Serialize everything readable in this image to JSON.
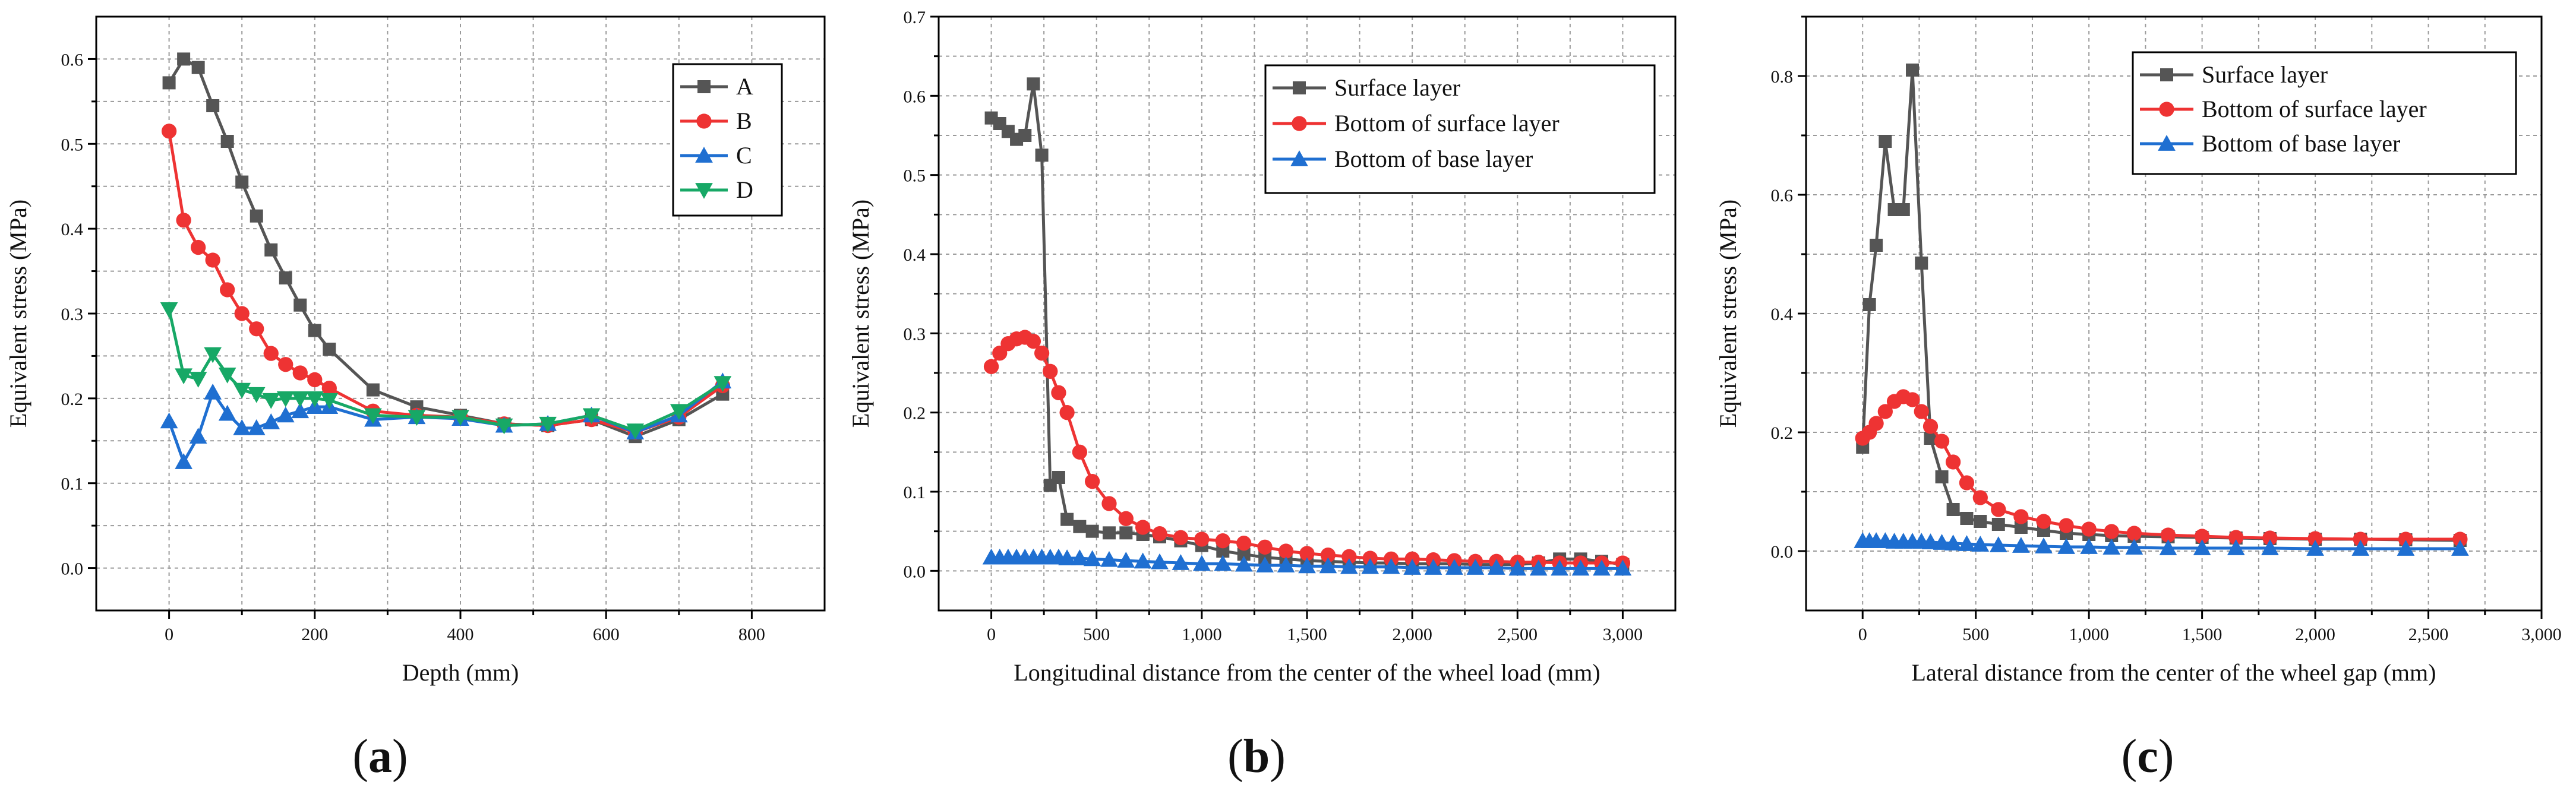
{
  "figure_labels": [
    {
      "open": "(",
      "letter": "a",
      "close": ")"
    },
    {
      "open": "(",
      "letter": "b",
      "close": ")"
    },
    {
      "open": "(",
      "letter": "c",
      "close": ")"
    }
  ],
  "colors": {
    "gray": "#555555",
    "red": "#ee3333",
    "blue": "#1f6fd1",
    "green": "#17a866"
  },
  "chart_data": [
    {
      "type": "line",
      "title": "",
      "xlabel": "Depth (mm)",
      "ylabel": "Equivalent stress (MPa)",
      "xlim": [
        -100,
        900
      ],
      "ylim": [
        -0.05,
        0.65
      ],
      "xticks": [
        0,
        200,
        400,
        600,
        800
      ],
      "xtick_labels": [
        "0",
        "200",
        "400",
        "600",
        "800"
      ],
      "yticks": [
        0.0,
        0.1,
        0.2,
        0.3,
        0.4,
        0.5,
        0.6
      ],
      "ytick_labels": [
        "0.0",
        "0.1",
        "0.2",
        "0.3",
        "0.4",
        "0.5",
        "0.6"
      ],
      "xgrid_step": 100,
      "ygrid_step": 0.05,
      "legend_position": "top-right",
      "series": [
        {
          "name": "A",
          "color": "#555555",
          "marker": "square",
          "x": [
            0,
            20,
            40,
            60,
            80,
            100,
            120,
            140,
            160,
            180,
            200,
            220,
            280,
            340,
            400,
            460,
            520,
            580,
            640,
            700,
            760
          ],
          "y": [
            0.572,
            0.6,
            0.59,
            0.545,
            0.503,
            0.455,
            0.415,
            0.375,
            0.342,
            0.31,
            0.28,
            0.258,
            0.21,
            0.19,
            0.18,
            0.17,
            0.168,
            0.175,
            0.155,
            0.175,
            0.205
          ]
        },
        {
          "name": "B",
          "color": "#ee3333",
          "marker": "circle",
          "x": [
            0,
            20,
            40,
            60,
            80,
            100,
            120,
            140,
            160,
            180,
            200,
            220,
            280,
            340,
            400,
            460,
            520,
            580,
            640,
            700,
            760
          ],
          "y": [
            0.515,
            0.41,
            0.378,
            0.363,
            0.328,
            0.3,
            0.282,
            0.253,
            0.24,
            0.23,
            0.222,
            0.212,
            0.185,
            0.18,
            0.178,
            0.17,
            0.168,
            0.175,
            0.16,
            0.178,
            0.215
          ]
        },
        {
          "name": "C",
          "color": "#1f6fd1",
          "marker": "triangle-up",
          "x": [
            0,
            20,
            40,
            60,
            80,
            100,
            120,
            140,
            160,
            180,
            200,
            220,
            280,
            340,
            400,
            460,
            520,
            580,
            640,
            700,
            760
          ],
          "y": [
            0.173,
            0.125,
            0.155,
            0.207,
            0.182,
            0.165,
            0.165,
            0.172,
            0.18,
            0.185,
            0.19,
            0.19,
            0.175,
            0.178,
            0.176,
            0.168,
            0.17,
            0.18,
            0.16,
            0.18,
            0.22
          ]
        },
        {
          "name": "D",
          "color": "#17a866",
          "marker": "triangle-down",
          "x": [
            0,
            20,
            40,
            60,
            80,
            100,
            120,
            140,
            160,
            180,
            200,
            220,
            280,
            340,
            400,
            460,
            520,
            580,
            640,
            700,
            760
          ],
          "y": [
            0.305,
            0.227,
            0.223,
            0.252,
            0.228,
            0.21,
            0.205,
            0.198,
            0.2,
            0.2,
            0.2,
            0.198,
            0.18,
            0.178,
            0.178,
            0.168,
            0.17,
            0.18,
            0.162,
            0.185,
            0.218
          ]
        }
      ]
    },
    {
      "type": "line",
      "title": "",
      "xlabel": "Longitudinal distance from the center of the wheel load (mm)",
      "ylabel": "Equivalent stress (MPa)",
      "xlim": [
        -250,
        3250
      ],
      "ylim": [
        -0.05,
        0.7
      ],
      "xticks": [
        0,
        500,
        1000,
        1500,
        2000,
        2500,
        3000
      ],
      "xtick_labels": [
        "0",
        "500",
        "1,000",
        "1,500",
        "2,000",
        "2,500",
        "3,000"
      ],
      "yticks": [
        0.0,
        0.1,
        0.2,
        0.3,
        0.4,
        0.5,
        0.6,
        0.7
      ],
      "ytick_labels": [
        "0.0",
        "0.1",
        "0.2",
        "0.3",
        "0.4",
        "0.5",
        "0.6",
        "0.7"
      ],
      "xgrid_step": 250,
      "ygrid_step": 0.05,
      "legend_position": "top-right",
      "series": [
        {
          "name": "Surface layer",
          "color": "#555555",
          "marker": "square",
          "x": [
            0,
            40,
            80,
            120,
            160,
            200,
            240,
            280,
            320,
            360,
            420,
            480,
            560,
            640,
            720,
            800,
            900,
            1000,
            1100,
            1200,
            1300,
            1400,
            1500,
            1600,
            1700,
            1800,
            1900,
            2000,
            2100,
            2200,
            2300,
            2400,
            2500,
            2600,
            2700,
            2800,
            2900,
            3000
          ],
          "y": [
            0.572,
            0.565,
            0.555,
            0.545,
            0.55,
            0.615,
            0.525,
            0.108,
            0.118,
            0.065,
            0.056,
            0.05,
            0.048,
            0.048,
            0.046,
            0.043,
            0.038,
            0.032,
            0.025,
            0.021,
            0.017,
            0.015,
            0.013,
            0.012,
            0.011,
            0.01,
            0.01,
            0.009,
            0.009,
            0.009,
            0.008,
            0.008,
            0.008,
            0.01,
            0.015,
            0.015,
            0.012,
            0.008
          ]
        },
        {
          "name": "Bottom of surface layer",
          "color": "#ee3333",
          "marker": "circle",
          "x": [
            0,
            40,
            80,
            120,
            160,
            200,
            240,
            280,
            320,
            360,
            420,
            480,
            560,
            640,
            720,
            800,
            900,
            1000,
            1100,
            1200,
            1300,
            1400,
            1500,
            1600,
            1700,
            1800,
            1900,
            2000,
            2100,
            2200,
            2300,
            2400,
            2500,
            2600,
            2700,
            2800,
            2900,
            3000
          ],
          "y": [
            0.258,
            0.275,
            0.287,
            0.293,
            0.295,
            0.29,
            0.275,
            0.252,
            0.225,
            0.2,
            0.15,
            0.113,
            0.085,
            0.066,
            0.055,
            0.047,
            0.042,
            0.04,
            0.038,
            0.035,
            0.03,
            0.025,
            0.022,
            0.02,
            0.018,
            0.016,
            0.015,
            0.015,
            0.014,
            0.013,
            0.012,
            0.012,
            0.011,
            0.011,
            0.01,
            0.01,
            0.01,
            0.01
          ]
        },
        {
          "name": "Bottom of base layer",
          "color": "#1f6fd1",
          "marker": "triangle-up",
          "x": [
            0,
            40,
            80,
            120,
            160,
            200,
            240,
            280,
            320,
            360,
            420,
            480,
            560,
            640,
            720,
            800,
            900,
            1000,
            1100,
            1200,
            1300,
            1400,
            1500,
            1600,
            1700,
            1800,
            1900,
            2000,
            2100,
            2200,
            2300,
            2400,
            2500,
            2600,
            2700,
            2800,
            2900,
            3000
          ],
          "y": [
            0.017,
            0.017,
            0.017,
            0.017,
            0.017,
            0.017,
            0.017,
            0.017,
            0.017,
            0.016,
            0.016,
            0.015,
            0.014,
            0.013,
            0.012,
            0.011,
            0.01,
            0.009,
            0.009,
            0.008,
            0.007,
            0.007,
            0.006,
            0.006,
            0.005,
            0.005,
            0.005,
            0.004,
            0.004,
            0.004,
            0.004,
            0.004,
            0.003,
            0.003,
            0.003,
            0.003,
            0.003,
            0.003
          ]
        }
      ]
    },
    {
      "type": "line",
      "title": "",
      "xlabel": "Lateral distance from the center of the wheel gap (mm)",
      "ylabel": "Equivalent stress (MPa)",
      "xlim": [
        -250,
        3000
      ],
      "ylim": [
        -0.1,
        0.9
      ],
      "xticks": [
        0,
        500,
        1000,
        1500,
        2000,
        2500,
        3000
      ],
      "xtick_labels": [
        "0",
        "500",
        "1,000",
        "1,500",
        "2,000",
        "2,500",
        "3,000"
      ],
      "yticks": [
        0.0,
        0.2,
        0.4,
        0.6,
        0.8
      ],
      "ytick_labels": [
        "0.0",
        "0.2",
        "0.4",
        "0.6",
        "0.8"
      ],
      "xgrid_step": 250,
      "ygrid_step": 0.1,
      "legend_position": "top-right",
      "series": [
        {
          "name": "Surface layer",
          "color": "#555555",
          "marker": "square",
          "x": [
            0,
            30,
            60,
            100,
            140,
            180,
            220,
            260,
            300,
            350,
            400,
            460,
            520,
            600,
            700,
            800,
            900,
            1000,
            1100,
            1200,
            1350,
            1500,
            1650,
            1800,
            2000,
            2200,
            2400,
            2640
          ],
          "y": [
            0.175,
            0.415,
            0.515,
            0.69,
            0.575,
            0.575,
            0.81,
            0.485,
            0.19,
            0.125,
            0.07,
            0.055,
            0.05,
            0.045,
            0.04,
            0.035,
            0.03,
            0.028,
            0.026,
            0.025,
            0.024,
            0.023,
            0.022,
            0.021,
            0.02,
            0.02,
            0.019,
            0.018
          ]
        },
        {
          "name": "Bottom of surface layer",
          "color": "#ee3333",
          "marker": "circle",
          "x": [
            0,
            30,
            60,
            100,
            140,
            180,
            220,
            260,
            300,
            350,
            400,
            460,
            520,
            600,
            700,
            800,
            900,
            1000,
            1100,
            1200,
            1350,
            1500,
            1650,
            1800,
            2000,
            2200,
            2400,
            2640
          ],
          "y": [
            0.19,
            0.2,
            0.215,
            0.235,
            0.252,
            0.26,
            0.255,
            0.235,
            0.21,
            0.185,
            0.15,
            0.115,
            0.09,
            0.07,
            0.058,
            0.05,
            0.043,
            0.037,
            0.033,
            0.03,
            0.027,
            0.025,
            0.023,
            0.022,
            0.021,
            0.02,
            0.02,
            0.02
          ]
        },
        {
          "name": "Bottom of base layer",
          "color": "#1f6fd1",
          "marker": "triangle-up",
          "x": [
            0,
            30,
            60,
            100,
            140,
            180,
            220,
            260,
            300,
            350,
            400,
            460,
            520,
            600,
            700,
            800,
            900,
            1000,
            1100,
            1200,
            1350,
            1500,
            1650,
            1800,
            2000,
            2200,
            2400,
            2640
          ],
          "y": [
            0.017,
            0.017,
            0.017,
            0.017,
            0.016,
            0.016,
            0.016,
            0.016,
            0.015,
            0.014,
            0.013,
            0.012,
            0.011,
            0.01,
            0.009,
            0.008,
            0.007,
            0.007,
            0.006,
            0.006,
            0.005,
            0.005,
            0.005,
            0.005,
            0.004,
            0.004,
            0.004,
            0.004
          ]
        }
      ]
    }
  ]
}
